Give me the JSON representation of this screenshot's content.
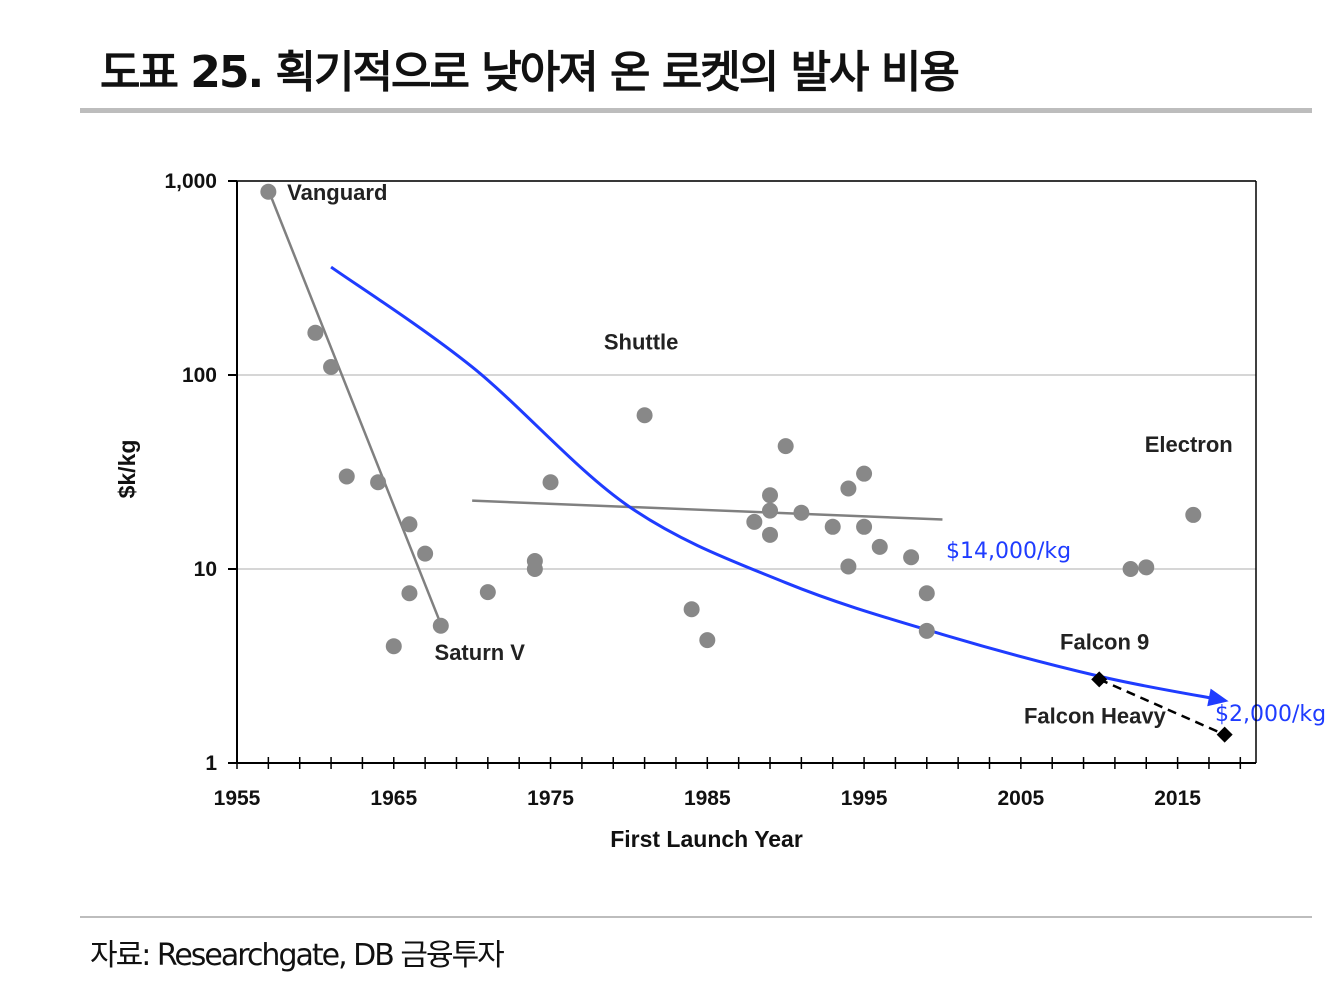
{
  "title": "도표 25. 획기적으로 낮아져 온 로켓의 발사 비용",
  "source": "자료: Researchgate, DB 금융투자",
  "chart_data": {
    "type": "scatter",
    "xlabel": "First Launch Year",
    "ylabel": "$k/kg",
    "yscale": "log",
    "xlim": [
      1955,
      2020
    ],
    "ylim": [
      1,
      1000
    ],
    "xticks": [
      1955,
      1965,
      1975,
      1985,
      1995,
      2005,
      2015
    ],
    "yticks": [
      {
        "value": 1,
        "label": "1"
      },
      {
        "value": 10,
        "label": "10"
      },
      {
        "value": 100,
        "label": "100"
      },
      {
        "value": 1000,
        "label": "1,000"
      }
    ],
    "grid": "horizontal",
    "colors": {
      "points": "#888888",
      "fit": "#808080",
      "trend": "#1f3cff",
      "falcon": "#000000"
    },
    "points": [
      {
        "x": 1957,
        "y": 880
      },
      {
        "x": 1960,
        "y": 165
      },
      {
        "x": 1961,
        "y": 110
      },
      {
        "x": 1962,
        "y": 30
      },
      {
        "x": 1964,
        "y": 28
      },
      {
        "x": 1965,
        "y": 4
      },
      {
        "x": 1966,
        "y": 17
      },
      {
        "x": 1966,
        "y": 7.5
      },
      {
        "x": 1967,
        "y": 12
      },
      {
        "x": 1968,
        "y": 5.1
      },
      {
        "x": 1971,
        "y": 7.6
      },
      {
        "x": 1974,
        "y": 11
      },
      {
        "x": 1974,
        "y": 10
      },
      {
        "x": 1975,
        "y": 28
      },
      {
        "x": 1981,
        "y": 62
      },
      {
        "x": 1984,
        "y": 6.2
      },
      {
        "x": 1985,
        "y": 4.3
      },
      {
        "x": 1988,
        "y": 17.5
      },
      {
        "x": 1989,
        "y": 24
      },
      {
        "x": 1989,
        "y": 20
      },
      {
        "x": 1989,
        "y": 15
      },
      {
        "x": 1990,
        "y": 43
      },
      {
        "x": 1991,
        "y": 19.5
      },
      {
        "x": 1993,
        "y": 16.5
      },
      {
        "x": 1994,
        "y": 26
      },
      {
        "x": 1994,
        "y": 10.3
      },
      {
        "x": 1995,
        "y": 31
      },
      {
        "x": 1995,
        "y": 16.5
      },
      {
        "x": 1996,
        "y": 13
      },
      {
        "x": 1998,
        "y": 11.5
      },
      {
        "x": 1999,
        "y": 7.5
      },
      {
        "x": 1999,
        "y": 4.8
      },
      {
        "x": 2012,
        "y": 10
      },
      {
        "x": 2013,
        "y": 10.2
      },
      {
        "x": 2016,
        "y": 19
      }
    ],
    "fit_lines": [
      {
        "points": [
          [
            1957,
            900
          ],
          [
            1968,
            5.2
          ]
        ]
      },
      {
        "points": [
          [
            1970,
            22.5
          ],
          [
            2000,
            18
          ]
        ]
      }
    ],
    "trend": {
      "label_mid": "$14,000/kg",
      "label_end": "$2,000/kg",
      "curve": [
        [
          1961,
          360
        ],
        [
          1970,
          110
        ],
        [
          1980,
          21
        ],
        [
          1990,
          8.5
        ],
        [
          2000,
          4.6
        ],
        [
          2010,
          2.8
        ],
        [
          2018,
          2.1
        ]
      ]
    },
    "falcon": {
      "points": [
        {
          "name": "Falcon 9",
          "x": 2010,
          "y": 2.7
        },
        {
          "name": "Falcon Heavy",
          "x": 2018,
          "y": 1.4
        }
      ]
    },
    "annotations": [
      {
        "text": "Vanguard",
        "x": 1958.2,
        "y": 800
      },
      {
        "text": "Saturn V",
        "x": 1967.6,
        "y": 3.4
      },
      {
        "text": "Shuttle",
        "x": 1978.4,
        "y": 135
      },
      {
        "text": "Electron",
        "x": 2012.9,
        "y": 40
      },
      {
        "text": "Falcon 9",
        "x": 2007.5,
        "y": 3.85
      },
      {
        "text": "Falcon Heavy",
        "x": 2005.2,
        "y": 1.6
      }
    ]
  }
}
